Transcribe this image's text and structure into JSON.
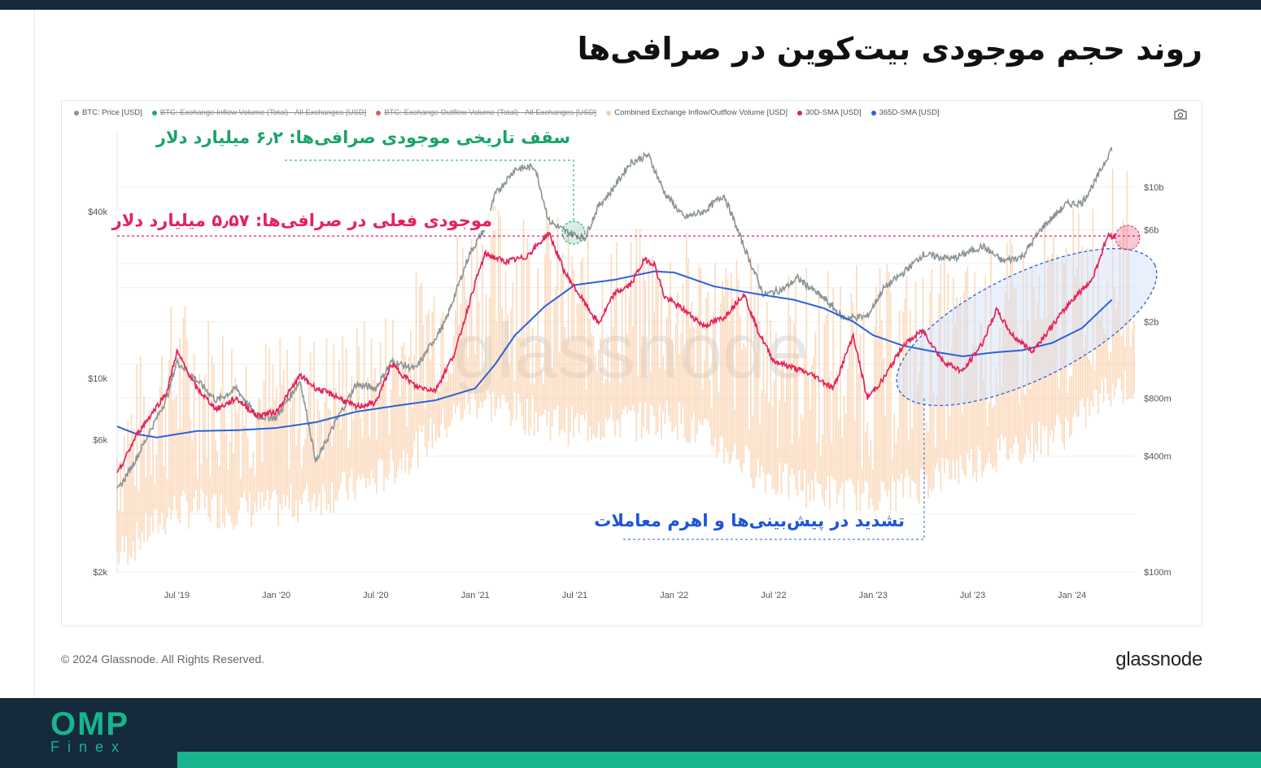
{
  "page": {
    "title": "روند حجم موجودی بیت‌کوین در صرافی‌ها",
    "copyright": "© 2024 Glassnode. All Rights Reserved.",
    "logo_text": "glassnode",
    "brand": {
      "main": "OMP",
      "sub": "Finex"
    },
    "colors": {
      "dark": "#152a3c",
      "accent": "#17b58d"
    }
  },
  "chart_data": {
    "type": "line",
    "watermark": "glassnode",
    "legend": [
      {
        "name": "BTC: Price [USD]",
        "color": "#8c9596",
        "enabled": true
      },
      {
        "name": "BTC: Exchange Inflow Volume (Total) - All Exchanges [USD]",
        "color": "#27a56b",
        "enabled": false
      },
      {
        "name": "BTC: Exchange Outflow Volume (Total) - All Exchanges [USD]",
        "color": "#e15a5a",
        "enabled": false
      },
      {
        "name": "Combined Exchange Inflow/Outflow Volume [USD]",
        "color": "#f8cfa6",
        "enabled": true
      },
      {
        "name": "30D-SMA [USD]",
        "color": "#e4235b",
        "enabled": true
      },
      {
        "name": "365D-SMA [USD]",
        "color": "#2a62dc",
        "enabled": true
      }
    ],
    "x_ticks": [
      "Jul '19",
      "Jan '20",
      "Jul '20",
      "Jan '21",
      "Jul '21",
      "Jan '22",
      "Jul '22",
      "Jan '23",
      "Jul '23",
      "Jan '24"
    ],
    "y_left_ticks": [
      "$40k",
      "$10k",
      "$6k",
      "$2k"
    ],
    "y_right_ticks": [
      "$10b",
      "$6b",
      "$2b",
      "$800m",
      "$400m",
      "$100m"
    ],
    "y_left_scale": "log",
    "y_right_scale": "log",
    "x_range": [
      "Mar '19",
      "Mar '24"
    ],
    "series": [
      {
        "name": "BTC: Price [USD]",
        "axis": "left",
        "points": [
          [
            2019.2,
            3900
          ],
          [
            2019.3,
            5200
          ],
          [
            2019.45,
            8500
          ],
          [
            2019.5,
            11500
          ],
          [
            2019.58,
            10200
          ],
          [
            2019.7,
            8300
          ],
          [
            2019.8,
            9200
          ],
          [
            2019.9,
            7300
          ],
          [
            2020.0,
            7200
          ],
          [
            2020.12,
            9800
          ],
          [
            2020.2,
            5000
          ],
          [
            2020.3,
            7000
          ],
          [
            2020.4,
            9500
          ],
          [
            2020.5,
            9200
          ],
          [
            2020.58,
            11500
          ],
          [
            2020.7,
            10800
          ],
          [
            2020.85,
            16000
          ],
          [
            2020.97,
            28000
          ],
          [
            2021.05,
            35000
          ],
          [
            2021.1,
            46000
          ],
          [
            2021.2,
            57000
          ],
          [
            2021.3,
            58000
          ],
          [
            2021.37,
            37000
          ],
          [
            2021.45,
            34000
          ],
          [
            2021.55,
            32000
          ],
          [
            2021.62,
            42000
          ],
          [
            2021.68,
            47000
          ],
          [
            2021.78,
            60000
          ],
          [
            2021.87,
            64000
          ],
          [
            2021.95,
            47000
          ],
          [
            2022.05,
            38000
          ],
          [
            2022.15,
            40000
          ],
          [
            2022.25,
            46000
          ],
          [
            2022.35,
            30000
          ],
          [
            2022.45,
            20000
          ],
          [
            2022.55,
            21000
          ],
          [
            2022.62,
            23000
          ],
          [
            2022.75,
            19500
          ],
          [
            2022.85,
            16500
          ],
          [
            2022.97,
            16700
          ],
          [
            2023.05,
            21000
          ],
          [
            2023.15,
            24000
          ],
          [
            2023.25,
            28000
          ],
          [
            2023.4,
            27000
          ],
          [
            2023.55,
            30000
          ],
          [
            2023.65,
            26500
          ],
          [
            2023.75,
            27500
          ],
          [
            2023.85,
            35000
          ],
          [
            2023.97,
            42500
          ],
          [
            2024.05,
            43000
          ],
          [
            2024.12,
            52000
          ],
          [
            2024.2,
            68000
          ]
        ]
      },
      {
        "name": "30D-SMA [USD]",
        "axis": "right",
        "points": [
          [
            2019.2,
            320
          ],
          [
            2019.3,
            520
          ],
          [
            2019.45,
            860
          ],
          [
            2019.5,
            1400
          ],
          [
            2019.6,
            900
          ],
          [
            2019.7,
            700
          ],
          [
            2019.8,
            800
          ],
          [
            2019.9,
            650
          ],
          [
            2020.0,
            680
          ],
          [
            2020.12,
            1050
          ],
          [
            2020.2,
            900
          ],
          [
            2020.3,
            820
          ],
          [
            2020.4,
            720
          ],
          [
            2020.5,
            760
          ],
          [
            2020.58,
            1200
          ],
          [
            2020.7,
            920
          ],
          [
            2020.8,
            880
          ],
          [
            2020.9,
            1400
          ],
          [
            2021.0,
            3200
          ],
          [
            2021.05,
            4500
          ],
          [
            2021.15,
            4100
          ],
          [
            2021.25,
            4300
          ],
          [
            2021.33,
            5200
          ],
          [
            2021.37,
            5800
          ],
          [
            2021.45,
            3600
          ],
          [
            2021.55,
            2500
          ],
          [
            2021.62,
            1950
          ],
          [
            2021.7,
            2800
          ],
          [
            2021.78,
            3100
          ],
          [
            2021.85,
            4200
          ],
          [
            2021.9,
            4000
          ],
          [
            2021.95,
            2700
          ],
          [
            2022.05,
            2300
          ],
          [
            2022.15,
            1900
          ],
          [
            2022.25,
            2100
          ],
          [
            2022.35,
            2800
          ],
          [
            2022.42,
            1800
          ],
          [
            2022.5,
            1250
          ],
          [
            2022.6,
            1150
          ],
          [
            2022.7,
            1050
          ],
          [
            2022.8,
            900
          ],
          [
            2022.9,
            1700
          ],
          [
            2022.97,
            800
          ],
          [
            2023.05,
            1000
          ],
          [
            2023.15,
            1500
          ],
          [
            2023.25,
            1800
          ],
          [
            2023.35,
            1250
          ],
          [
            2023.45,
            1100
          ],
          [
            2023.55,
            1550
          ],
          [
            2023.62,
            2300
          ],
          [
            2023.7,
            1700
          ],
          [
            2023.8,
            1400
          ],
          [
            2023.9,
            1900
          ],
          [
            2024.0,
            2600
          ],
          [
            2024.1,
            3300
          ],
          [
            2024.18,
            5600
          ],
          [
            2024.22,
            5570
          ]
        ]
      },
      {
        "name": "365D-SMA [USD]",
        "axis": "right",
        "points": [
          [
            2019.2,
            570
          ],
          [
            2019.3,
            520
          ],
          [
            2019.4,
            500
          ],
          [
            2019.6,
            540
          ],
          [
            2019.8,
            545
          ],
          [
            2020.0,
            560
          ],
          [
            2020.2,
            600
          ],
          [
            2020.4,
            680
          ],
          [
            2020.6,
            730
          ],
          [
            2020.8,
            780
          ],
          [
            2021.0,
            900
          ],
          [
            2021.1,
            1200
          ],
          [
            2021.2,
            1700
          ],
          [
            2021.35,
            2400
          ],
          [
            2021.5,
            3100
          ],
          [
            2021.7,
            3300
          ],
          [
            2021.9,
            3650
          ],
          [
            2022.0,
            3600
          ],
          [
            2022.2,
            3050
          ],
          [
            2022.4,
            2800
          ],
          [
            2022.6,
            2600
          ],
          [
            2022.75,
            2350
          ],
          [
            2022.9,
            2000
          ],
          [
            2023.0,
            1700
          ],
          [
            2023.15,
            1500
          ],
          [
            2023.3,
            1400
          ],
          [
            2023.45,
            1320
          ],
          [
            2023.6,
            1380
          ],
          [
            2023.75,
            1420
          ],
          [
            2023.9,
            1550
          ],
          [
            2024.05,
            1850
          ],
          [
            2024.2,
            2600
          ]
        ]
      },
      {
        "name": "Combined Exchange Inflow/Outflow Volume [USD]",
        "axis": "right",
        "envelope_low": [
          [
            2019.2,
            170
          ],
          [
            2019.5,
            300
          ],
          [
            2020.0,
            300
          ],
          [
            2020.5,
            420
          ],
          [
            2021.0,
            1100
          ],
          [
            2021.5,
            800
          ],
          [
            2022.0,
            900
          ],
          [
            2022.5,
            420
          ],
          [
            2023.0,
            330
          ],
          [
            2023.5,
            520
          ],
          [
            2024.0,
            800
          ],
          [
            2024.2,
            1300
          ]
        ],
        "envelope_high": [
          [
            2019.2,
            900
          ],
          [
            2019.5,
            3000
          ],
          [
            2020.0,
            1700
          ],
          [
            2020.5,
            2200
          ],
          [
            2021.0,
            9000
          ],
          [
            2021.3,
            10000
          ],
          [
            2021.5,
            6000
          ],
          [
            2022.0,
            6500
          ],
          [
            2022.5,
            4200
          ],
          [
            2023.0,
            4000
          ],
          [
            2023.5,
            4500
          ],
          [
            2024.0,
            8000
          ],
          [
            2024.2,
            13000
          ]
        ]
      }
    ],
    "annotations": [
      {
        "text": "سقف تاریخی موجودی صرافی‌ها: ۶٫۲ میلیارد دلار",
        "color": "#1aa36a"
      },
      {
        "text": "موجودی فعلی در صرافی‌ها: ۵٫۵۷ میلیارد دلار",
        "color": "#e4235b",
        "value": 5570
      },
      {
        "text": "تشدید در پیش‌بینی‌ها و اهرم معاملات",
        "color": "#1d55d8"
      }
    ]
  }
}
